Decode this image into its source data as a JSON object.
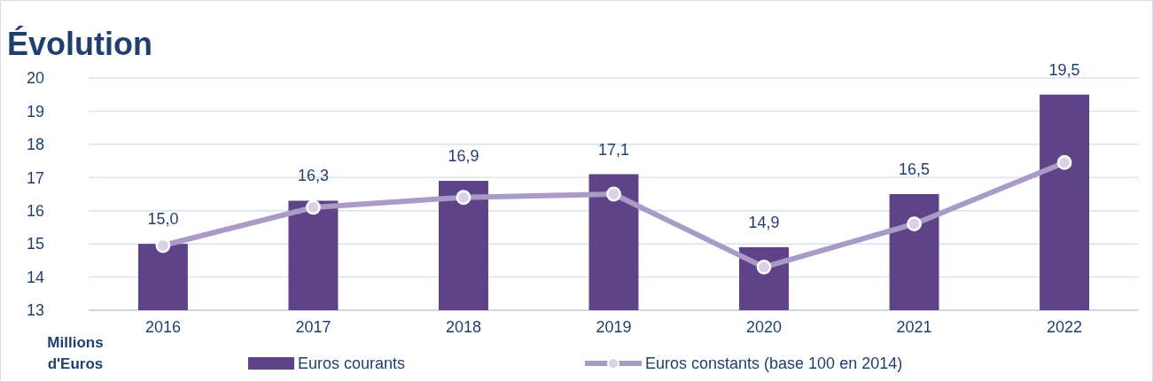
{
  "chart_data": {
    "type": "bar",
    "title": "Évolution",
    "ylabel": "Millions d'Euros",
    "categories": [
      "2016",
      "2017",
      "2018",
      "2019",
      "2020",
      "2021",
      "2022"
    ],
    "series": [
      {
        "name": "Euros courants",
        "color": "#5f4388",
        "values": [
          15.0,
          16.3,
          16.9,
          17.1,
          14.9,
          16.5,
          19.5
        ],
        "value_labels": [
          "15,0",
          "16,3",
          "16,9",
          "17,1",
          "14,9",
          "16,5",
          "19,5"
        ]
      },
      {
        "name": "Euros constants (base 100 en 2014)",
        "type": "line",
        "color": "#a99bc6",
        "marker": "circle",
        "values": [
          14.95,
          16.1,
          16.4,
          16.5,
          14.3,
          15.6,
          17.45
        ]
      }
    ],
    "ylim": [
      13,
      20
    ],
    "yticks": [
      13,
      14,
      15,
      16,
      17,
      18,
      19,
      20
    ],
    "grid": "y",
    "legend": "bottom"
  }
}
